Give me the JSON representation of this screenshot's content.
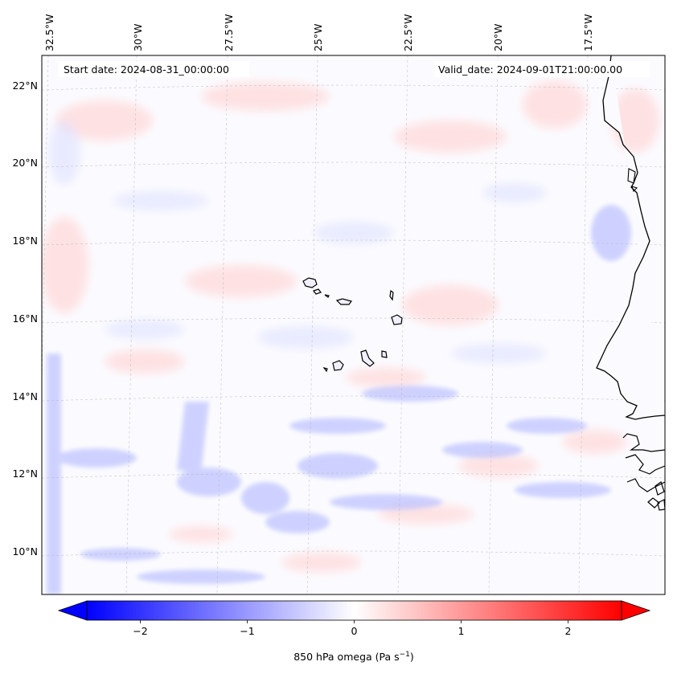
{
  "map": {
    "start_date": "Start date: 2024-08-31_00:00:00",
    "valid_date": "Valid_date: 2024-09-01T21:00:00.00",
    "lon_labels": [
      "32.5°W",
      "30°W",
      "27.5°W",
      "25°W",
      "22.5°W",
      "20°W",
      "17.5°W"
    ],
    "lat_labels": [
      "22°N",
      "20°N",
      "18°N",
      "16°N",
      "14°N",
      "12°N",
      "10°N"
    ],
    "field": "850 hPa omega",
    "features": [
      "cape-verde-islands",
      "west-africa-coastline"
    ]
  },
  "colorbar": {
    "label": "850 hPa omega (Pa s",
    "label_exp": "−1",
    "label_close": ")",
    "ticks": [
      "−2",
      "−1",
      "0",
      "1",
      "2"
    ],
    "tick_values": [
      -2,
      -1,
      0,
      1,
      2
    ],
    "range": [
      -2.5,
      2.5
    ],
    "color_negative": "#0000ff",
    "color_zero": "#ffffff",
    "color_positive": "#ff0000"
  }
}
